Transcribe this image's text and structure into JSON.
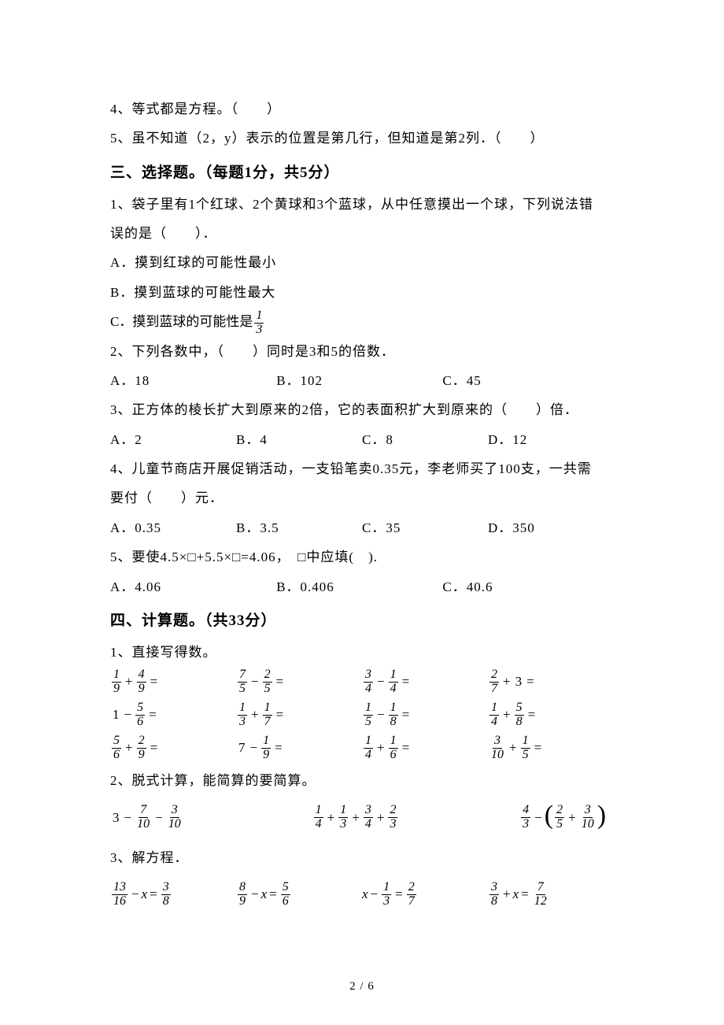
{
  "tf": {
    "q4": "4、等式都是方程。（　　）",
    "q5": "5、虽不知道（2，y）表示的位置是第几行，但知道是第2列．（　　）"
  },
  "section3": {
    "heading": "三、选择题。（每题1分，共5分）",
    "q1_l1": "1、袋子里有1个红球、2个黄球和3个蓝球，从中任意摸出一个球，下列说法错",
    "q1_l2": "误的是（　　）．",
    "q1_a": "A．摸到红球的可能性最小",
    "q1_b": "B．摸到蓝球的可能性最大",
    "q1_c_pre": "C．摸到蓝球的可能性是",
    "q2_stem": "2、下列各数中，（　　）同时是3和5的倍数．",
    "q2_a": "A．18",
    "q2_b": "B．102",
    "q2_c": "C．45",
    "q3_stem": "3、正方体的棱长扩大到原来的2倍，它的表面积扩大到原来的（　　）倍．",
    "q3_a": "A．2",
    "q3_b": "B．4",
    "q3_c": "C．8",
    "q3_d": "D．12",
    "q4_l1": "4、儿童节商店开展促销活动，一支铅笔卖0.35元，李老师买了100支，一共需",
    "q4_l2": "要付（　　）元．",
    "q4_a": "A．0.35",
    "q4_b": "B．3.5",
    "q4_c": "C．35",
    "q4_d": "D．350",
    "q5_stem": "5、要使4.5×□+5.5×□=4.06，　□中应填(　).",
    "q5_a": "A．4.06",
    "q5_b": "B．0.406",
    "q5_c": "C．40.6"
  },
  "section4": {
    "heading": "四、计算题。（共33分）",
    "q1": "1、直接写得数。",
    "grid": [
      [
        {
          "type": "frac_add",
          "a": "1",
          "b": "9",
          "c": "4",
          "d": "9",
          "eq": true
        },
        {
          "type": "frac_sub",
          "a": "7",
          "b": "5",
          "c": "2",
          "d": "5",
          "eq": true
        },
        {
          "type": "frac_sub",
          "a": "3",
          "b": "4",
          "c": "1",
          "d": "4",
          "eq": true
        },
        {
          "type": "frac_plus_int",
          "a": "2",
          "b": "7",
          "n": "3",
          "eq": true
        }
      ],
      [
        {
          "type": "int_minus_frac",
          "n": "1",
          "a": "5",
          "b": "6",
          "eq": true
        },
        {
          "type": "frac_add",
          "a": "1",
          "b": "3",
          "c": "1",
          "d": "7",
          "eq": true
        },
        {
          "type": "frac_sub",
          "a": "1",
          "b": "5",
          "c": "1",
          "d": "8",
          "eq": true
        },
        {
          "type": "frac_add",
          "a": "1",
          "b": "4",
          "c": "5",
          "d": "8",
          "eq": true
        }
      ],
      [
        {
          "type": "frac_add",
          "a": "5",
          "b": "6",
          "c": "2",
          "d": "9",
          "eq": true
        },
        {
          "type": "int_minus_frac",
          "n": "7",
          "a": "1",
          "b": "9",
          "eq": true
        },
        {
          "type": "frac_add",
          "a": "1",
          "b": "4",
          "c": "1",
          "d": "6",
          "eq": true
        },
        {
          "type": "frac_add",
          "a": "3",
          "b": "10",
          "c": "1",
          "d": "5",
          "eq": true
        }
      ]
    ],
    "q2": "2、脱式计算，能简算的要简算。",
    "expr2": [
      {
        "type": "e1",
        "int": "3",
        "a": "7",
        "b": "10",
        "c": "3",
        "d": "10"
      },
      {
        "type": "e2",
        "f": [
          [
            "1",
            "4"
          ],
          [
            "1",
            "3"
          ],
          [
            "3",
            "4"
          ],
          [
            "2",
            "3"
          ]
        ]
      },
      {
        "type": "e3",
        "a": "4",
        "b": "3",
        "c": "2",
        "d": "5",
        "e": "3",
        "f": "10"
      }
    ],
    "q3": "3、解方程．",
    "expr3": [
      {
        "a": "13",
        "b": "16",
        "op": "−",
        "rhs_a": "3",
        "rhs_b": "8",
        "xfirst": false
      },
      {
        "a": "8",
        "b": "9",
        "op": "−",
        "rhs_a": "5",
        "rhs_b": "6",
        "xfirst": false
      },
      {
        "a": "1",
        "b": "3",
        "op": "−",
        "rhs_a": "2",
        "rhs_b": "7",
        "xfirst": true
      },
      {
        "a": "3",
        "b": "8",
        "op": "+",
        "rhs_a": "7",
        "rhs_b": "12",
        "xfirst": false
      }
    ]
  },
  "pageNum": "2 / 6",
  "fracs": {
    "onethird": {
      "n": "1",
      "d": "3"
    }
  }
}
